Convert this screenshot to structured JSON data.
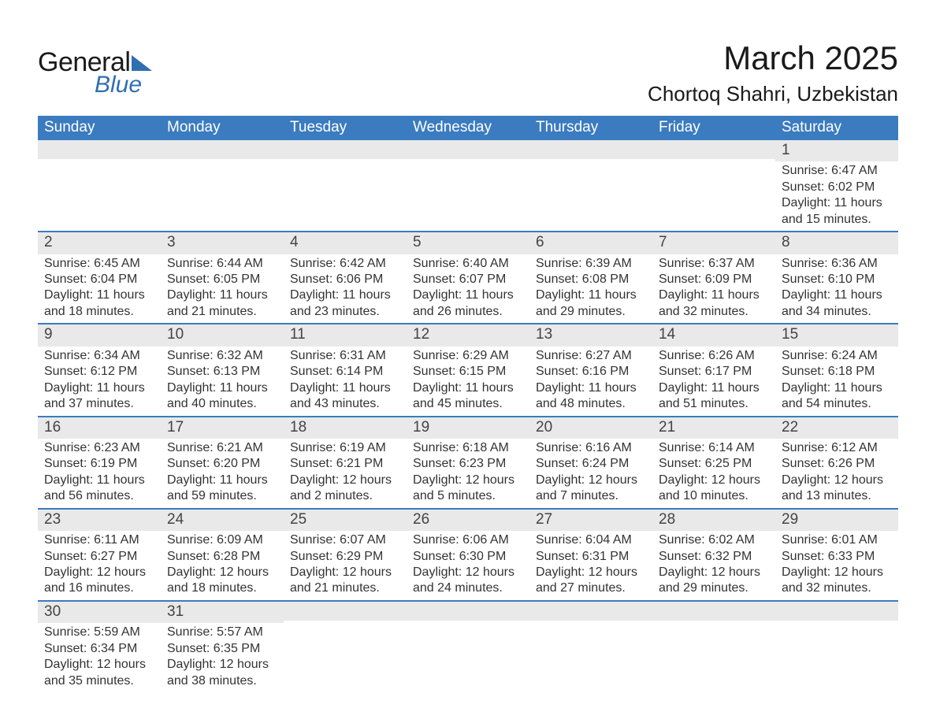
{
  "logo": {
    "word1": "General",
    "word2": "Blue"
  },
  "title": "March 2025",
  "location": "Chortoq Shahri, Uzbekistan",
  "colors": {
    "header_bg": "#3b7bbf",
    "row_divider": "#3b7bbf",
    "daynum_bg": "#e9e9e9",
    "text": "#333333",
    "logo_accent": "#2f6fb0",
    "background": "#ffffff"
  },
  "typography": {
    "title_fontsize": 42,
    "location_fontsize": 26,
    "weekday_fontsize": 19,
    "daynum_fontsize": 19,
    "body_fontsize": 16
  },
  "weekdays": [
    "Sunday",
    "Monday",
    "Tuesday",
    "Wednesday",
    "Thursday",
    "Friday",
    "Saturday"
  ],
  "labels": {
    "sunrise": "Sunrise:",
    "sunset": "Sunset:",
    "daylight": "Daylight:"
  },
  "weeks": [
    [
      null,
      null,
      null,
      null,
      null,
      null,
      {
        "n": "1",
        "sunrise": "6:47 AM",
        "sunset": "6:02 PM",
        "daylight": "11 hours and 15 minutes."
      }
    ],
    [
      {
        "n": "2",
        "sunrise": "6:45 AM",
        "sunset": "6:04 PM",
        "daylight": "11 hours and 18 minutes."
      },
      {
        "n": "3",
        "sunrise": "6:44 AM",
        "sunset": "6:05 PM",
        "daylight": "11 hours and 21 minutes."
      },
      {
        "n": "4",
        "sunrise": "6:42 AM",
        "sunset": "6:06 PM",
        "daylight": "11 hours and 23 minutes."
      },
      {
        "n": "5",
        "sunrise": "6:40 AM",
        "sunset": "6:07 PM",
        "daylight": "11 hours and 26 minutes."
      },
      {
        "n": "6",
        "sunrise": "6:39 AM",
        "sunset": "6:08 PM",
        "daylight": "11 hours and 29 minutes."
      },
      {
        "n": "7",
        "sunrise": "6:37 AM",
        "sunset": "6:09 PM",
        "daylight": "11 hours and 32 minutes."
      },
      {
        "n": "8",
        "sunrise": "6:36 AM",
        "sunset": "6:10 PM",
        "daylight": "11 hours and 34 minutes."
      }
    ],
    [
      {
        "n": "9",
        "sunrise": "6:34 AM",
        "sunset": "6:12 PM",
        "daylight": "11 hours and 37 minutes."
      },
      {
        "n": "10",
        "sunrise": "6:32 AM",
        "sunset": "6:13 PM",
        "daylight": "11 hours and 40 minutes."
      },
      {
        "n": "11",
        "sunrise": "6:31 AM",
        "sunset": "6:14 PM",
        "daylight": "11 hours and 43 minutes."
      },
      {
        "n": "12",
        "sunrise": "6:29 AM",
        "sunset": "6:15 PM",
        "daylight": "11 hours and 45 minutes."
      },
      {
        "n": "13",
        "sunrise": "6:27 AM",
        "sunset": "6:16 PM",
        "daylight": "11 hours and 48 minutes."
      },
      {
        "n": "14",
        "sunrise": "6:26 AM",
        "sunset": "6:17 PM",
        "daylight": "11 hours and 51 minutes."
      },
      {
        "n": "15",
        "sunrise": "6:24 AM",
        "sunset": "6:18 PM",
        "daylight": "11 hours and 54 minutes."
      }
    ],
    [
      {
        "n": "16",
        "sunrise": "6:23 AM",
        "sunset": "6:19 PM",
        "daylight": "11 hours and 56 minutes."
      },
      {
        "n": "17",
        "sunrise": "6:21 AM",
        "sunset": "6:20 PM",
        "daylight": "11 hours and 59 minutes."
      },
      {
        "n": "18",
        "sunrise": "6:19 AM",
        "sunset": "6:21 PM",
        "daylight": "12 hours and 2 minutes."
      },
      {
        "n": "19",
        "sunrise": "6:18 AM",
        "sunset": "6:23 PM",
        "daylight": "12 hours and 5 minutes."
      },
      {
        "n": "20",
        "sunrise": "6:16 AM",
        "sunset": "6:24 PM",
        "daylight": "12 hours and 7 minutes."
      },
      {
        "n": "21",
        "sunrise": "6:14 AM",
        "sunset": "6:25 PM",
        "daylight": "12 hours and 10 minutes."
      },
      {
        "n": "22",
        "sunrise": "6:12 AM",
        "sunset": "6:26 PM",
        "daylight": "12 hours and 13 minutes."
      }
    ],
    [
      {
        "n": "23",
        "sunrise": "6:11 AM",
        "sunset": "6:27 PM",
        "daylight": "12 hours and 16 minutes."
      },
      {
        "n": "24",
        "sunrise": "6:09 AM",
        "sunset": "6:28 PM",
        "daylight": "12 hours and 18 minutes."
      },
      {
        "n": "25",
        "sunrise": "6:07 AM",
        "sunset": "6:29 PM",
        "daylight": "12 hours and 21 minutes."
      },
      {
        "n": "26",
        "sunrise": "6:06 AM",
        "sunset": "6:30 PM",
        "daylight": "12 hours and 24 minutes."
      },
      {
        "n": "27",
        "sunrise": "6:04 AM",
        "sunset": "6:31 PM",
        "daylight": "12 hours and 27 minutes."
      },
      {
        "n": "28",
        "sunrise": "6:02 AM",
        "sunset": "6:32 PM",
        "daylight": "12 hours and 29 minutes."
      },
      {
        "n": "29",
        "sunrise": "6:01 AM",
        "sunset": "6:33 PM",
        "daylight": "12 hours and 32 minutes."
      }
    ],
    [
      {
        "n": "30",
        "sunrise": "5:59 AM",
        "sunset": "6:34 PM",
        "daylight": "12 hours and 35 minutes."
      },
      {
        "n": "31",
        "sunrise": "5:57 AM",
        "sunset": "6:35 PM",
        "daylight": "12 hours and 38 minutes."
      },
      null,
      null,
      null,
      null,
      null
    ]
  ]
}
